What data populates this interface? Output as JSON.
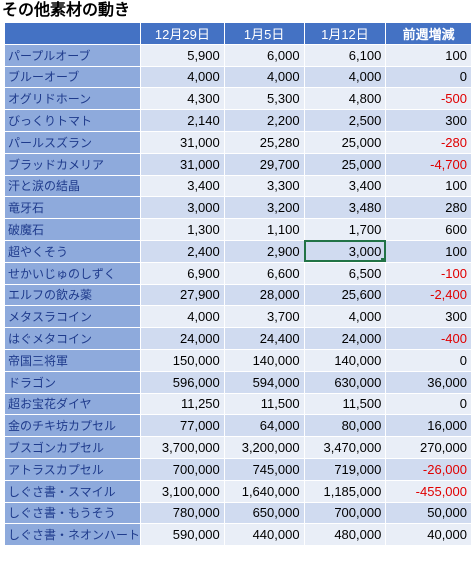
{
  "title": "その他素材の動き",
  "columns": {
    "name": "",
    "d1": "12月29日",
    "d2": "1月5日",
    "d3": "1月12日",
    "diff": "前週増減"
  },
  "rows": [
    {
      "name": "パープルオーブ",
      "d1": "5,900",
      "d2": "6,000",
      "d3": "6,100",
      "diff": "100",
      "neg": false
    },
    {
      "name": "ブルーオーブ",
      "d1": "4,000",
      "d2": "4,000",
      "d3": "4,000",
      "diff": "0",
      "neg": false
    },
    {
      "name": "オグリドホーン",
      "d1": "4,300",
      "d2": "5,300",
      "d3": "4,800",
      "diff": "-500",
      "neg": true
    },
    {
      "name": "びっくりトマト",
      "d1": "2,140",
      "d2": "2,200",
      "d3": "2,500",
      "diff": "300",
      "neg": false
    },
    {
      "name": "パールスズラン",
      "d1": "31,000",
      "d2": "25,280",
      "d3": "25,000",
      "diff": "-280",
      "neg": true
    },
    {
      "name": "ブラッドカメリア",
      "d1": "31,000",
      "d2": "29,700",
      "d3": "25,000",
      "diff": "-4,700",
      "neg": true
    },
    {
      "name": "汗と涙の結晶",
      "d1": "3,400",
      "d2": "3,300",
      "d3": "3,400",
      "diff": "100",
      "neg": false
    },
    {
      "name": "竜牙石",
      "d1": "3,000",
      "d2": "3,200",
      "d3": "3,480",
      "diff": "280",
      "neg": false
    },
    {
      "name": "破魔石",
      "d1": "1,300",
      "d2": "1,100",
      "d3": "1,700",
      "diff": "600",
      "neg": false
    },
    {
      "name": "超やくそう",
      "d1": "2,400",
      "d2": "2,900",
      "d3": "3,000",
      "diff": "100",
      "neg": false,
      "selected": true
    },
    {
      "name": "せかいじゅのしずく",
      "d1": "6,900",
      "d2": "6,600",
      "d3": "6,500",
      "diff": "-100",
      "neg": true
    },
    {
      "name": "エルフの飲み薬",
      "d1": "27,900",
      "d2": "28,000",
      "d3": "25,600",
      "diff": "-2,400",
      "neg": true
    },
    {
      "name": "メタスラコイン",
      "d1": "4,000",
      "d2": "3,700",
      "d3": "4,000",
      "diff": "300",
      "neg": false
    },
    {
      "name": "はぐメタコイン",
      "d1": "24,000",
      "d2": "24,400",
      "d3": "24,000",
      "diff": "-400",
      "neg": true
    },
    {
      "name": "帝国三将軍",
      "d1": "150,000",
      "d2": "140,000",
      "d3": "140,000",
      "diff": "0",
      "neg": false
    },
    {
      "name": "ドラゴン",
      "d1": "596,000",
      "d2": "594,000",
      "d3": "630,000",
      "diff": "36,000",
      "neg": false
    },
    {
      "name": "超お宝花ダイヤ",
      "d1": "11,250",
      "d2": "11,500",
      "d3": "11,500",
      "diff": "0",
      "neg": false
    },
    {
      "name": "金のチキ坊カプセル",
      "d1": "77,000",
      "d2": "64,000",
      "d3": "80,000",
      "diff": "16,000",
      "neg": false
    },
    {
      "name": "ブスゴンカプセル",
      "d1": "3,700,000",
      "d2": "3,200,000",
      "d3": "3,470,000",
      "diff": "270,000",
      "neg": false
    },
    {
      "name": "アトラスカプセル",
      "d1": "700,000",
      "d2": "745,000",
      "d3": "719,000",
      "diff": "-26,000",
      "neg": true
    },
    {
      "name": "しぐさ書・スマイル",
      "d1": "3,100,000",
      "d2": "1,640,000",
      "d3": "1,185,000",
      "diff": "-455,000",
      "neg": true
    },
    {
      "name": "しぐさ書・もうそう",
      "d1": "780,000",
      "d2": "650,000",
      "d3": "700,000",
      "diff": "50,000",
      "neg": false
    },
    {
      "name": "しぐさ書・ネオンハート",
      "d1": "590,000",
      "d2": "440,000",
      "d3": "480,000",
      "diff": "40,000",
      "neg": false
    }
  ]
}
